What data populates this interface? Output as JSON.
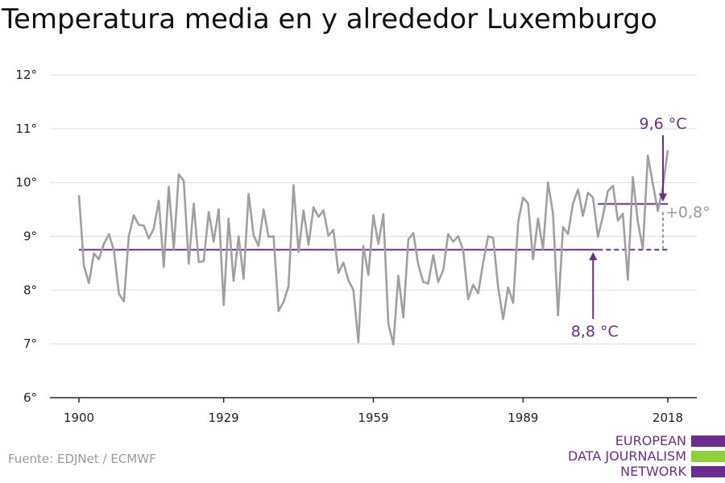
{
  "title": "Temperatura media en y alrededor Luxemburgo",
  "source": "Fuente: EDJNet / ECMWF",
  "logo": {
    "lines": [
      "EUROPEAN",
      "DATA JOURNALISM",
      "NETWORK"
    ]
  },
  "colors": {
    "series": "#a0a0a0",
    "accent": "#6a2c91",
    "grid": "#dddddd",
    "logo_green": "#8fcf3c"
  },
  "chart_data": {
    "type": "line",
    "title": "Temperatura media en y alrededor Luxemburgo",
    "xlim": [
      1900,
      2018
    ],
    "ylim": [
      6,
      12
    ],
    "x_ticks": [
      1900,
      1929,
      1959,
      1989,
      2018
    ],
    "x_tick_labels": [
      "1900",
      "1929",
      "1959",
      "1989",
      "2018"
    ],
    "y_ticks": [
      6,
      7,
      8,
      9,
      10,
      11,
      12
    ],
    "y_tick_labels": [
      "6°",
      "7°",
      "8°",
      "9°",
      "10°",
      "11°",
      "12°"
    ],
    "grid": true,
    "x": [
      1900,
      1901,
      1902,
      1903,
      1904,
      1905,
      1906,
      1907,
      1908,
      1909,
      1910,
      1911,
      1912,
      1913,
      1914,
      1915,
      1916,
      1917,
      1918,
      1919,
      1920,
      1921,
      1922,
      1923,
      1924,
      1925,
      1926,
      1927,
      1928,
      1929,
      1930,
      1931,
      1932,
      1933,
      1934,
      1935,
      1936,
      1937,
      1938,
      1939,
      1940,
      1941,
      1942,
      1943,
      1944,
      1945,
      1946,
      1947,
      1948,
      1949,
      1950,
      1951,
      1952,
      1953,
      1954,
      1955,
      1956,
      1957,
      1958,
      1959,
      1960,
      1961,
      1962,
      1963,
      1964,
      1965,
      1966,
      1967,
      1968,
      1969,
      1970,
      1971,
      1972,
      1973,
      1974,
      1975,
      1976,
      1977,
      1978,
      1979,
      1980,
      1981,
      1982,
      1983,
      1984,
      1985,
      1986,
      1987,
      1988,
      1989,
      1990,
      1991,
      1992,
      1993,
      1994,
      1995,
      1996,
      1997,
      1998,
      1999,
      2000,
      2001,
      2002,
      2003,
      2004,
      2005,
      2006,
      2007,
      2008,
      2009,
      2010,
      2011,
      2012,
      2013,
      2014,
      2015,
      2016,
      2017,
      2018
    ],
    "y": [
      9.76,
      8.45,
      8.13,
      8.68,
      8.57,
      8.86,
      9.04,
      8.74,
      7.93,
      7.79,
      9.0,
      9.39,
      9.21,
      9.2,
      8.96,
      9.14,
      9.66,
      8.43,
      9.92,
      8.76,
      10.15,
      10.03,
      8.49,
      9.61,
      8.52,
      8.54,
      9.45,
      8.9,
      9.5,
      7.72,
      9.33,
      8.17,
      9.0,
      8.21,
      9.79,
      9.02,
      8.82,
      9.5,
      8.99,
      9.0,
      7.61,
      7.78,
      8.07,
      9.95,
      8.71,
      9.48,
      8.84,
      9.54,
      9.36,
      9.48,
      9.01,
      9.12,
      8.32,
      8.51,
      8.18,
      8.0,
      7.03,
      8.82,
      8.28,
      9.39,
      8.86,
      9.41,
      7.37,
      6.99,
      8.27,
      7.49,
      8.94,
      9.06,
      8.47,
      8.15,
      8.12,
      8.65,
      8.15,
      8.37,
      9.04,
      8.9,
      9.0,
      8.74,
      7.83,
      8.1,
      7.94,
      8.51,
      9.0,
      8.97,
      8.05,
      7.46,
      8.05,
      7.76,
      9.26,
      9.72,
      9.61,
      8.57,
      9.33,
      8.76,
      10.0,
      9.42,
      7.53,
      9.17,
      9.04,
      9.61,
      9.87,
      9.38,
      9.81,
      9.72,
      8.99,
      9.38,
      9.84,
      9.94,
      9.29,
      9.42,
      8.19,
      10.1,
      9.27,
      8.77,
      10.5,
      9.98,
      9.47,
      9.91,
      10.6
    ],
    "reference_lines": [
      {
        "label": "8,8 °C",
        "value": 8.75,
        "x_start": 1900,
        "x_solid_end": 2004,
        "x_end": 2018
      },
      {
        "label": "9,6 °C",
        "value": 9.6,
        "x_start": 2004,
        "x_end": 2018
      }
    ],
    "difference_label": "+0,8°"
  }
}
